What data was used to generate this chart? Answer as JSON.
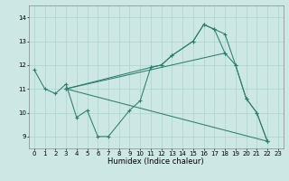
{
  "xlabel": "Humidex (Indice chaleur)",
  "bg_color": "#cde8e4",
  "line_color": "#2e7d6e",
  "grid_color": "#a8d5cc",
  "xlim": [
    -0.5,
    23.5
  ],
  "ylim": [
    8.5,
    14.5
  ],
  "yticks": [
    9,
    10,
    11,
    12,
    13,
    14
  ],
  "xticks": [
    0,
    1,
    2,
    3,
    4,
    5,
    6,
    7,
    8,
    9,
    10,
    11,
    12,
    13,
    14,
    15,
    16,
    17,
    18,
    19,
    20,
    21,
    22,
    23
  ],
  "line1_x": [
    0,
    1,
    2,
    3,
    4,
    5,
    6,
    7,
    9,
    10,
    11,
    12,
    13,
    15,
    16,
    17,
    18,
    19,
    20,
    21,
    22
  ],
  "line1_y": [
    11.8,
    11.0,
    10.8,
    11.2,
    9.8,
    10.1,
    9.0,
    9.0,
    10.1,
    10.5,
    11.9,
    12.0,
    12.4,
    13.0,
    13.7,
    13.5,
    13.3,
    12.0,
    10.6,
    10.0,
    8.8
  ],
  "line2_x": [
    3,
    11,
    12,
    13,
    15,
    16,
    17,
    18,
    19,
    20,
    21,
    22
  ],
  "line2_y": [
    11.0,
    11.9,
    12.0,
    12.4,
    13.0,
    13.7,
    13.5,
    12.5,
    12.0,
    10.6,
    10.0,
    8.8
  ],
  "line3_x": [
    3,
    22
  ],
  "line3_y": [
    11.0,
    8.8
  ],
  "line4_x": [
    3,
    18
  ],
  "line4_y": [
    11.0,
    12.5
  ],
  "marker_size": 2.5,
  "tick_fontsize": 5.0,
  "label_fontsize": 6.0,
  "linewidth": 0.75
}
